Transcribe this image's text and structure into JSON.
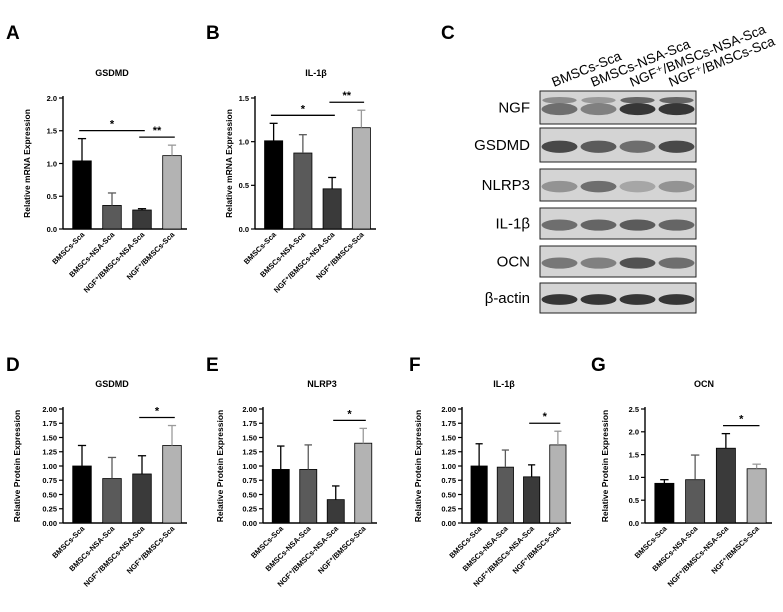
{
  "panels": {
    "A": "A",
    "B": "B",
    "C": "C",
    "D": "D",
    "E": "E",
    "F": "F",
    "G": "G"
  },
  "colors": {
    "bars": [
      "#000000",
      "#5a5a5a",
      "#3a3a3a",
      "#b3b3b3"
    ]
  },
  "blot": {
    "lanes": [
      "BMSCs-Sca",
      "BMSCs-NSA-Sca",
      "NGF⁺/BMSCs-NSA-Sca",
      "NGF⁺/BMSCs-Sca"
    ],
    "rows": [
      "NGF",
      "GSDMD",
      "NLRP3",
      "IL-1β",
      "OCN",
      "β-actin"
    ]
  },
  "chart_data": [
    {
      "id": "A",
      "type": "bar",
      "title": "GSDMD",
      "xlabel": "",
      "ylabel": "Relative mRNA Expression",
      "categories": [
        "BMSCs-Sca",
        "BMSCs-NSA-Sca",
        "NGF⁺/BMSCs-NSA-Sca",
        "NGF⁺/BMSCs-Sca"
      ],
      "values": [
        1.04,
        0.36,
        0.29,
        1.12
      ],
      "errors": [
        0.34,
        0.19,
        0.02,
        0.16
      ],
      "ylim": [
        0,
        2.0
      ],
      "yticks": [
        "0.0",
        "0.5",
        "1.0",
        "1.5",
        "2.0"
      ],
      "significance": [
        {
          "from": 0,
          "to": 2,
          "label": "*"
        },
        {
          "from": 2,
          "to": 3,
          "label": "**"
        }
      ]
    },
    {
      "id": "B",
      "type": "bar",
      "title": "IL-1β",
      "xlabel": "",
      "ylabel": "Relative mRNA Expression",
      "categories": [
        "BMSCs-Sca",
        "BMSCs-NSA-Sca",
        "NGF⁺/BMSCs-NSA-Sca",
        "NGF⁺/BMSCs-Sca"
      ],
      "values": [
        1.01,
        0.87,
        0.46,
        1.16
      ],
      "errors": [
        0.2,
        0.21,
        0.13,
        0.2
      ],
      "ylim": [
        0,
        1.5
      ],
      "yticks": [
        "0.0",
        "0.5",
        "1.0",
        "1.5"
      ],
      "significance": [
        {
          "from": 0,
          "to": 2,
          "label": "*"
        },
        {
          "from": 2,
          "to": 3,
          "label": "**"
        }
      ]
    },
    {
      "id": "D",
      "type": "bar",
      "title": "GSDMD",
      "xlabel": "",
      "ylabel": "Relative Protein Expression",
      "categories": [
        "BMSCs-Sca",
        "BMSCs-NSA-Sca",
        "NGF⁺/BMSCs-NSA-Sca",
        "NGF⁺/BMSCs-Sca"
      ],
      "values": [
        1.0,
        0.78,
        0.86,
        1.36
      ],
      "errors": [
        0.36,
        0.37,
        0.32,
        0.35
      ],
      "ylim": [
        0,
        2.0
      ],
      "yticks": [
        "0.00",
        "0.25",
        "0.50",
        "0.75",
        "1.00",
        "1.25",
        "1.50",
        "1.75",
        "2.00"
      ],
      "significance": [
        {
          "from": 2,
          "to": 3,
          "label": "*"
        }
      ]
    },
    {
      "id": "E",
      "type": "bar",
      "title": "NLRP3",
      "xlabel": "",
      "ylabel": "Relative Protein Expression",
      "categories": [
        "BMSCs-Sca",
        "BMSCs-NSA-Sca",
        "NGF⁺/BMSCs-NSA-Sca",
        "NGF⁺/BMSCs-Sca"
      ],
      "values": [
        0.94,
        0.94,
        0.41,
        1.4
      ],
      "errors": [
        0.41,
        0.43,
        0.24,
        0.26
      ],
      "ylim": [
        0,
        2.0
      ],
      "yticks": [
        "0.00",
        "0.25",
        "0.50",
        "0.75",
        "1.00",
        "1.25",
        "1.50",
        "1.75",
        "2.00"
      ],
      "significance": [
        {
          "from": 2,
          "to": 3,
          "label": "*"
        }
      ]
    },
    {
      "id": "F",
      "type": "bar",
      "title": "IL-1β",
      "xlabel": "",
      "ylabel": "Relative Protein Expression",
      "categories": [
        "BMSCs-Sca",
        "BMSCs-NSA-Sca",
        "NGF⁺/BMSCs-NSA-Sca",
        "NGF⁺/BMSCs-Sca"
      ],
      "values": [
        1.0,
        0.98,
        0.81,
        1.37
      ],
      "errors": [
        0.39,
        0.3,
        0.21,
        0.24
      ],
      "ylim": [
        0,
        2.0
      ],
      "yticks": [
        "0.00",
        "0.25",
        "0.50",
        "0.75",
        "1.00",
        "1.25",
        "1.50",
        "1.75",
        "2.00"
      ],
      "significance": [
        {
          "from": 2,
          "to": 3,
          "label": "*"
        }
      ]
    },
    {
      "id": "G",
      "type": "bar",
      "title": "OCN",
      "xlabel": "",
      "ylabel": "Relative Protein Expression",
      "categories": [
        "BMSCs-Sca",
        "BMSCs-NSA-Sca",
        "NGF⁺/BMSCs-NSA-Sca",
        "NGF⁺/BMSCs-Sca"
      ],
      "values": [
        0.87,
        0.95,
        1.64,
        1.19
      ],
      "errors": [
        0.08,
        0.54,
        0.32,
        0.1
      ],
      "ylim": [
        0,
        2.5
      ],
      "yticks": [
        "0.0",
        "0.5",
        "1.0",
        "1.5",
        "2.0",
        "2.5"
      ],
      "significance": [
        {
          "from": 2,
          "to": 3,
          "label": "*"
        }
      ]
    }
  ]
}
